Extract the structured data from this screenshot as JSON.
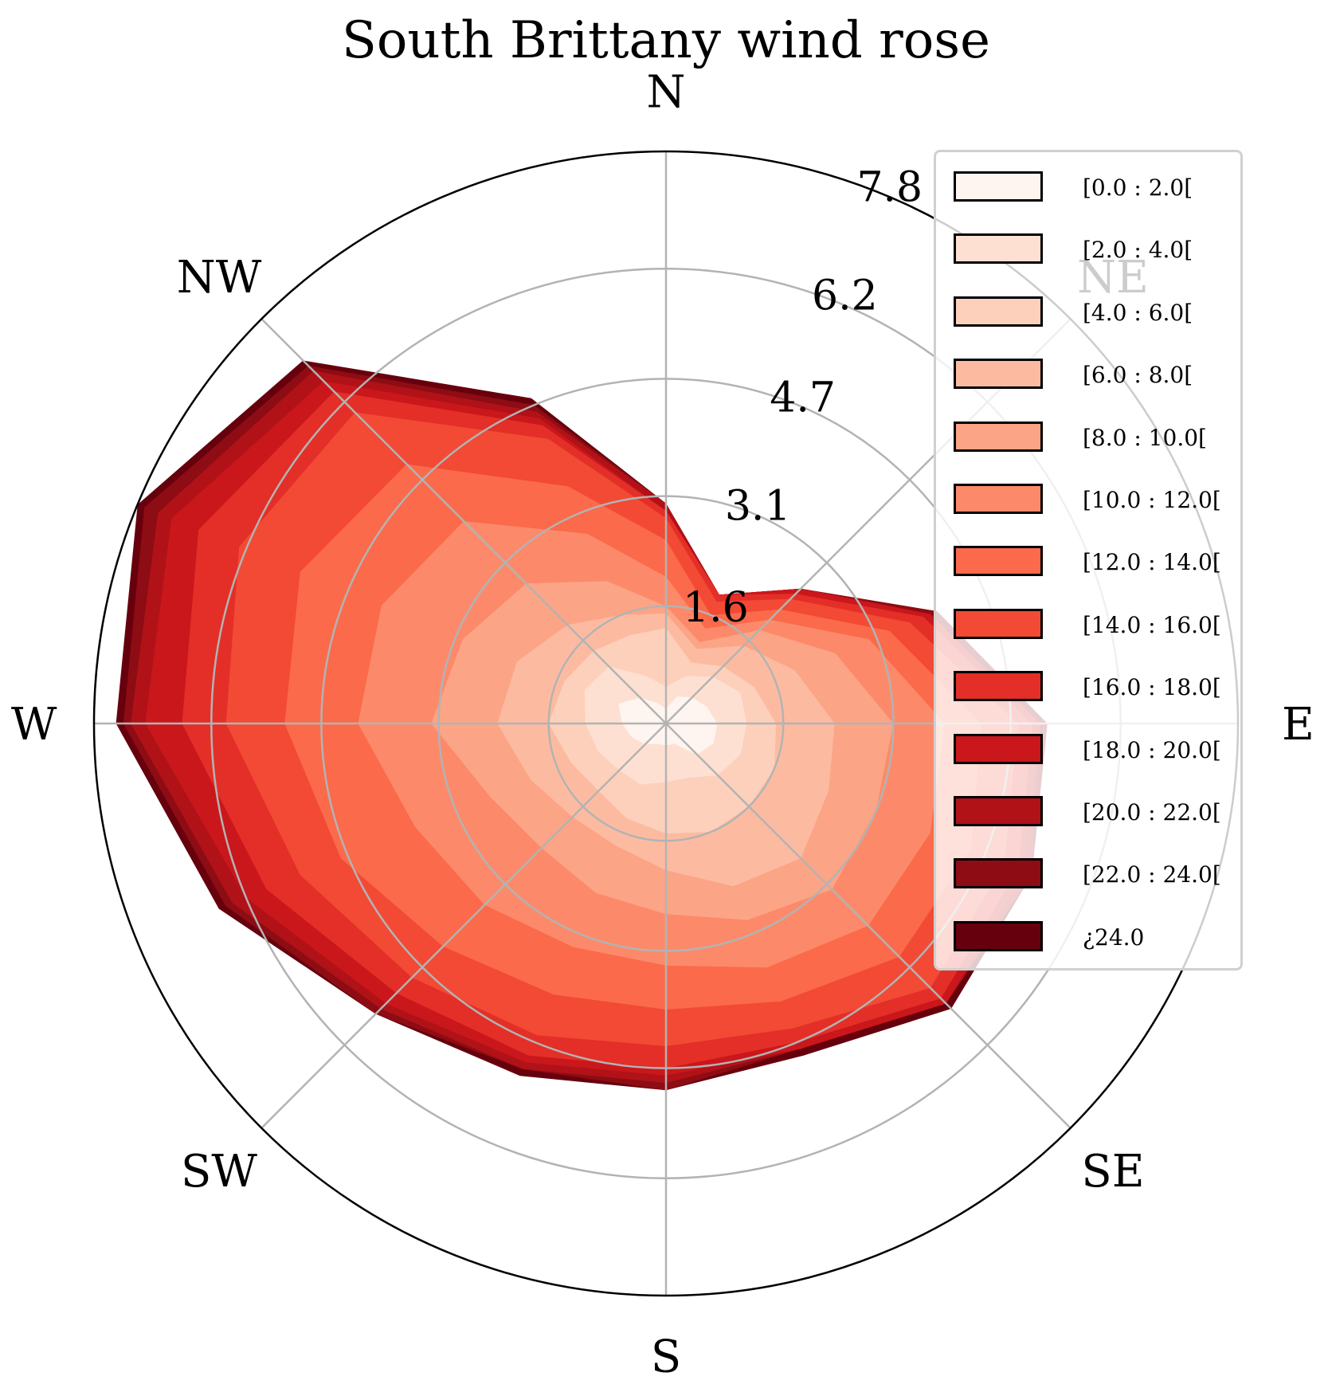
{
  "title": "South Brittany wind rose",
  "chart_data": {
    "type": "area",
    "subtype": "polar wind rose (stacked filled contours)",
    "title": "South Brittany wind rose",
    "directions": [
      "N",
      "NE",
      "E",
      "SE",
      "S",
      "SW",
      "W",
      "NW"
    ],
    "radial_ticks": [
      "1.6",
      "3.1",
      "4.7",
      "6.2",
      "7.8"
    ],
    "rmax": 7.8,
    "grid": true,
    "legend_position": "right",
    "angles_deg": [
      0,
      22.5,
      45,
      67.5,
      90,
      112.5,
      135,
      157.5,
      180,
      202.5,
      225,
      247.5,
      270,
      292.5,
      315,
      337.5
    ],
    "bins": [
      {
        "label": "[0.0 : 2.0[",
        "color": "#fff5f0",
        "cumulative": [
          0.2,
          0.4,
          0.5,
          0.6,
          0.7,
          0.7,
          0.6,
          0.3,
          0.3,
          0.3,
          0.4,
          0.5,
          0.6,
          0.7,
          0.5,
          0.3
        ]
      },
      {
        "label": "[2.0 : 4.0[",
        "color": "#fee0d2",
        "cumulative": [
          0.5,
          0.7,
          0.9,
          1.1,
          1.1,
          1.1,
          1.0,
          0.8,
          0.8,
          0.9,
          0.9,
          1.0,
          1.1,
          1.2,
          1.1,
          0.7
        ]
      },
      {
        "label": "[4.0 : 6.0[",
        "color": "#fdd0bc",
        "cumulative": [
          1.3,
          0.9,
          1.1,
          1.3,
          1.5,
          1.6,
          1.6,
          1.6,
          1.5,
          1.4,
          1.3,
          1.4,
          1.6,
          1.5,
          1.4,
          1.3
        ]
      },
      {
        "label": "[6.0 : 8.0[",
        "color": "#fcbba1",
        "cumulative": [
          1.5,
          1.1,
          1.5,
          1.9,
          2.3,
          2.4,
          2.6,
          2.4,
          2.0,
          1.8,
          1.8,
          2.0,
          2.3,
          2.2,
          1.9,
          1.6
        ]
      },
      {
        "label": "[8.0 : 10.0[",
        "color": "#fca486",
        "cumulative": [
          1.6,
          1.2,
          1.8,
          2.5,
          3.1,
          3.1,
          3.2,
          2.9,
          2.6,
          2.5,
          2.4,
          2.6,
          3.2,
          3.0,
          2.7,
          2.1
        ]
      },
      {
        "label": "[10.0 : 12.0[",
        "color": "#fc8a6a",
        "cumulative": [
          2.0,
          1.4,
          2.0,
          3.0,
          3.8,
          3.9,
          3.9,
          3.6,
          3.3,
          3.3,
          3.5,
          3.7,
          4.2,
          4.2,
          3.9,
          2.8
        ]
      },
      {
        "label": "[12.0 : 14.0[",
        "color": "#fb6a4a",
        "cumulative": [
          2.5,
          1.6,
          2.2,
          3.3,
          4.3,
          4.5,
          4.5,
          4.1,
          3.9,
          4.0,
          4.3,
          4.8,
          5.2,
          5.4,
          5.0,
          3.5
        ]
      },
      {
        "label": "[14.0 : 16.0[",
        "color": "#f24a35",
        "cumulative": [
          2.8,
          1.8,
          2.4,
          3.6,
          4.8,
          5.0,
          5.1,
          4.5,
          4.4,
          4.6,
          4.9,
          5.4,
          6.0,
          6.3,
          6.0,
          4.2
        ]
      },
      {
        "label": "[16.0 : 18.0[",
        "color": "#e32f27",
        "cumulative": [
          2.9,
          1.9,
          2.5,
          3.8,
          5.0,
          5.2,
          5.3,
          4.7,
          4.7,
          4.9,
          5.2,
          5.9,
          6.6,
          6.9,
          6.4,
          4.4
        ]
      },
      {
        "label": "[18.0 : 20.0[",
        "color": "#ca171c",
        "cumulative": [
          2.9,
          1.9,
          2.6,
          3.9,
          5.1,
          5.3,
          5.4,
          4.8,
          4.8,
          5.0,
          5.4,
          6.2,
          7.1,
          7.3,
          6.6,
          4.5
        ]
      },
      {
        "label": "[20.0 : 22.0[",
        "color": "#b01217",
        "cumulative": [
          3.0,
          1.9,
          2.6,
          3.9,
          5.1,
          5.4,
          5.4,
          4.8,
          4.9,
          5.1,
          5.5,
          6.4,
          7.3,
          7.5,
          6.8,
          4.6
        ]
      },
      {
        "label": "[22.0 : 24.0[",
        "color": "#8e0c14",
        "cumulative": [
          3.0,
          1.9,
          2.6,
          4.0,
          5.2,
          5.4,
          5.4,
          4.8,
          5.0,
          5.1,
          5.6,
          6.5,
          7.4,
          7.7,
          6.9,
          4.7
        ]
      },
      {
        "label": "¿24.0",
        "color": "#67000d",
        "cumulative": [
          3.0,
          1.9,
          2.6,
          4.0,
          5.2,
          5.4,
          5.5,
          4.9,
          5.0,
          5.2,
          5.6,
          6.6,
          7.5,
          7.8,
          7.0,
          4.8
        ]
      }
    ]
  }
}
